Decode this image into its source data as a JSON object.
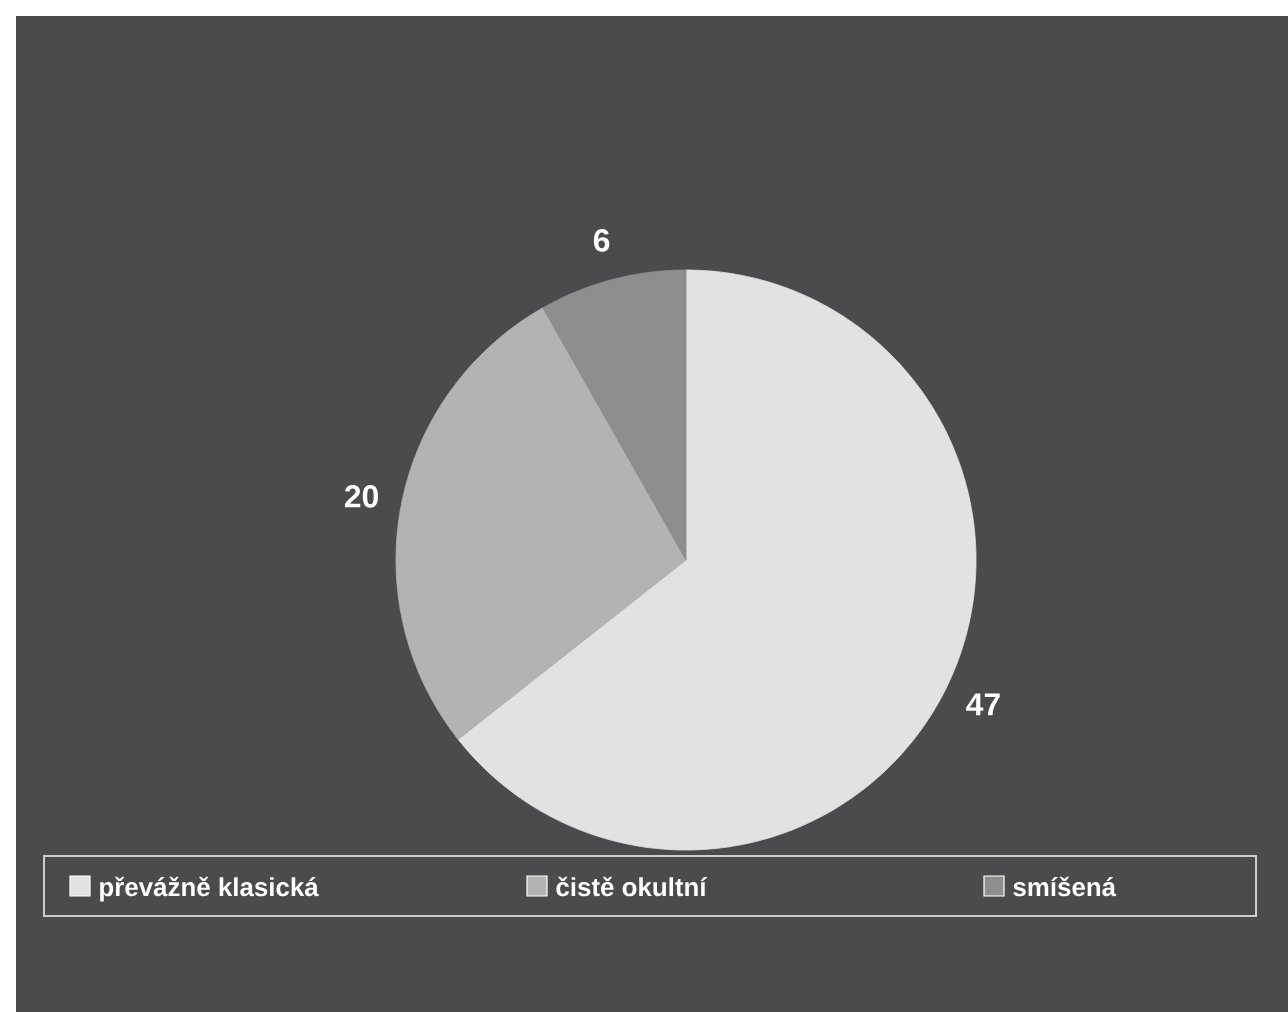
{
  "chart_data": {
    "type": "pie",
    "categories": [
      "převážně klasická",
      "čistě okultní",
      "smíšená"
    ],
    "values": [
      47,
      20,
      6
    ],
    "colors": [
      "#e2e2e2",
      "#b3b3b3",
      "#8e8e8e"
    ],
    "data_labels": true,
    "legend": "bottom"
  }
}
